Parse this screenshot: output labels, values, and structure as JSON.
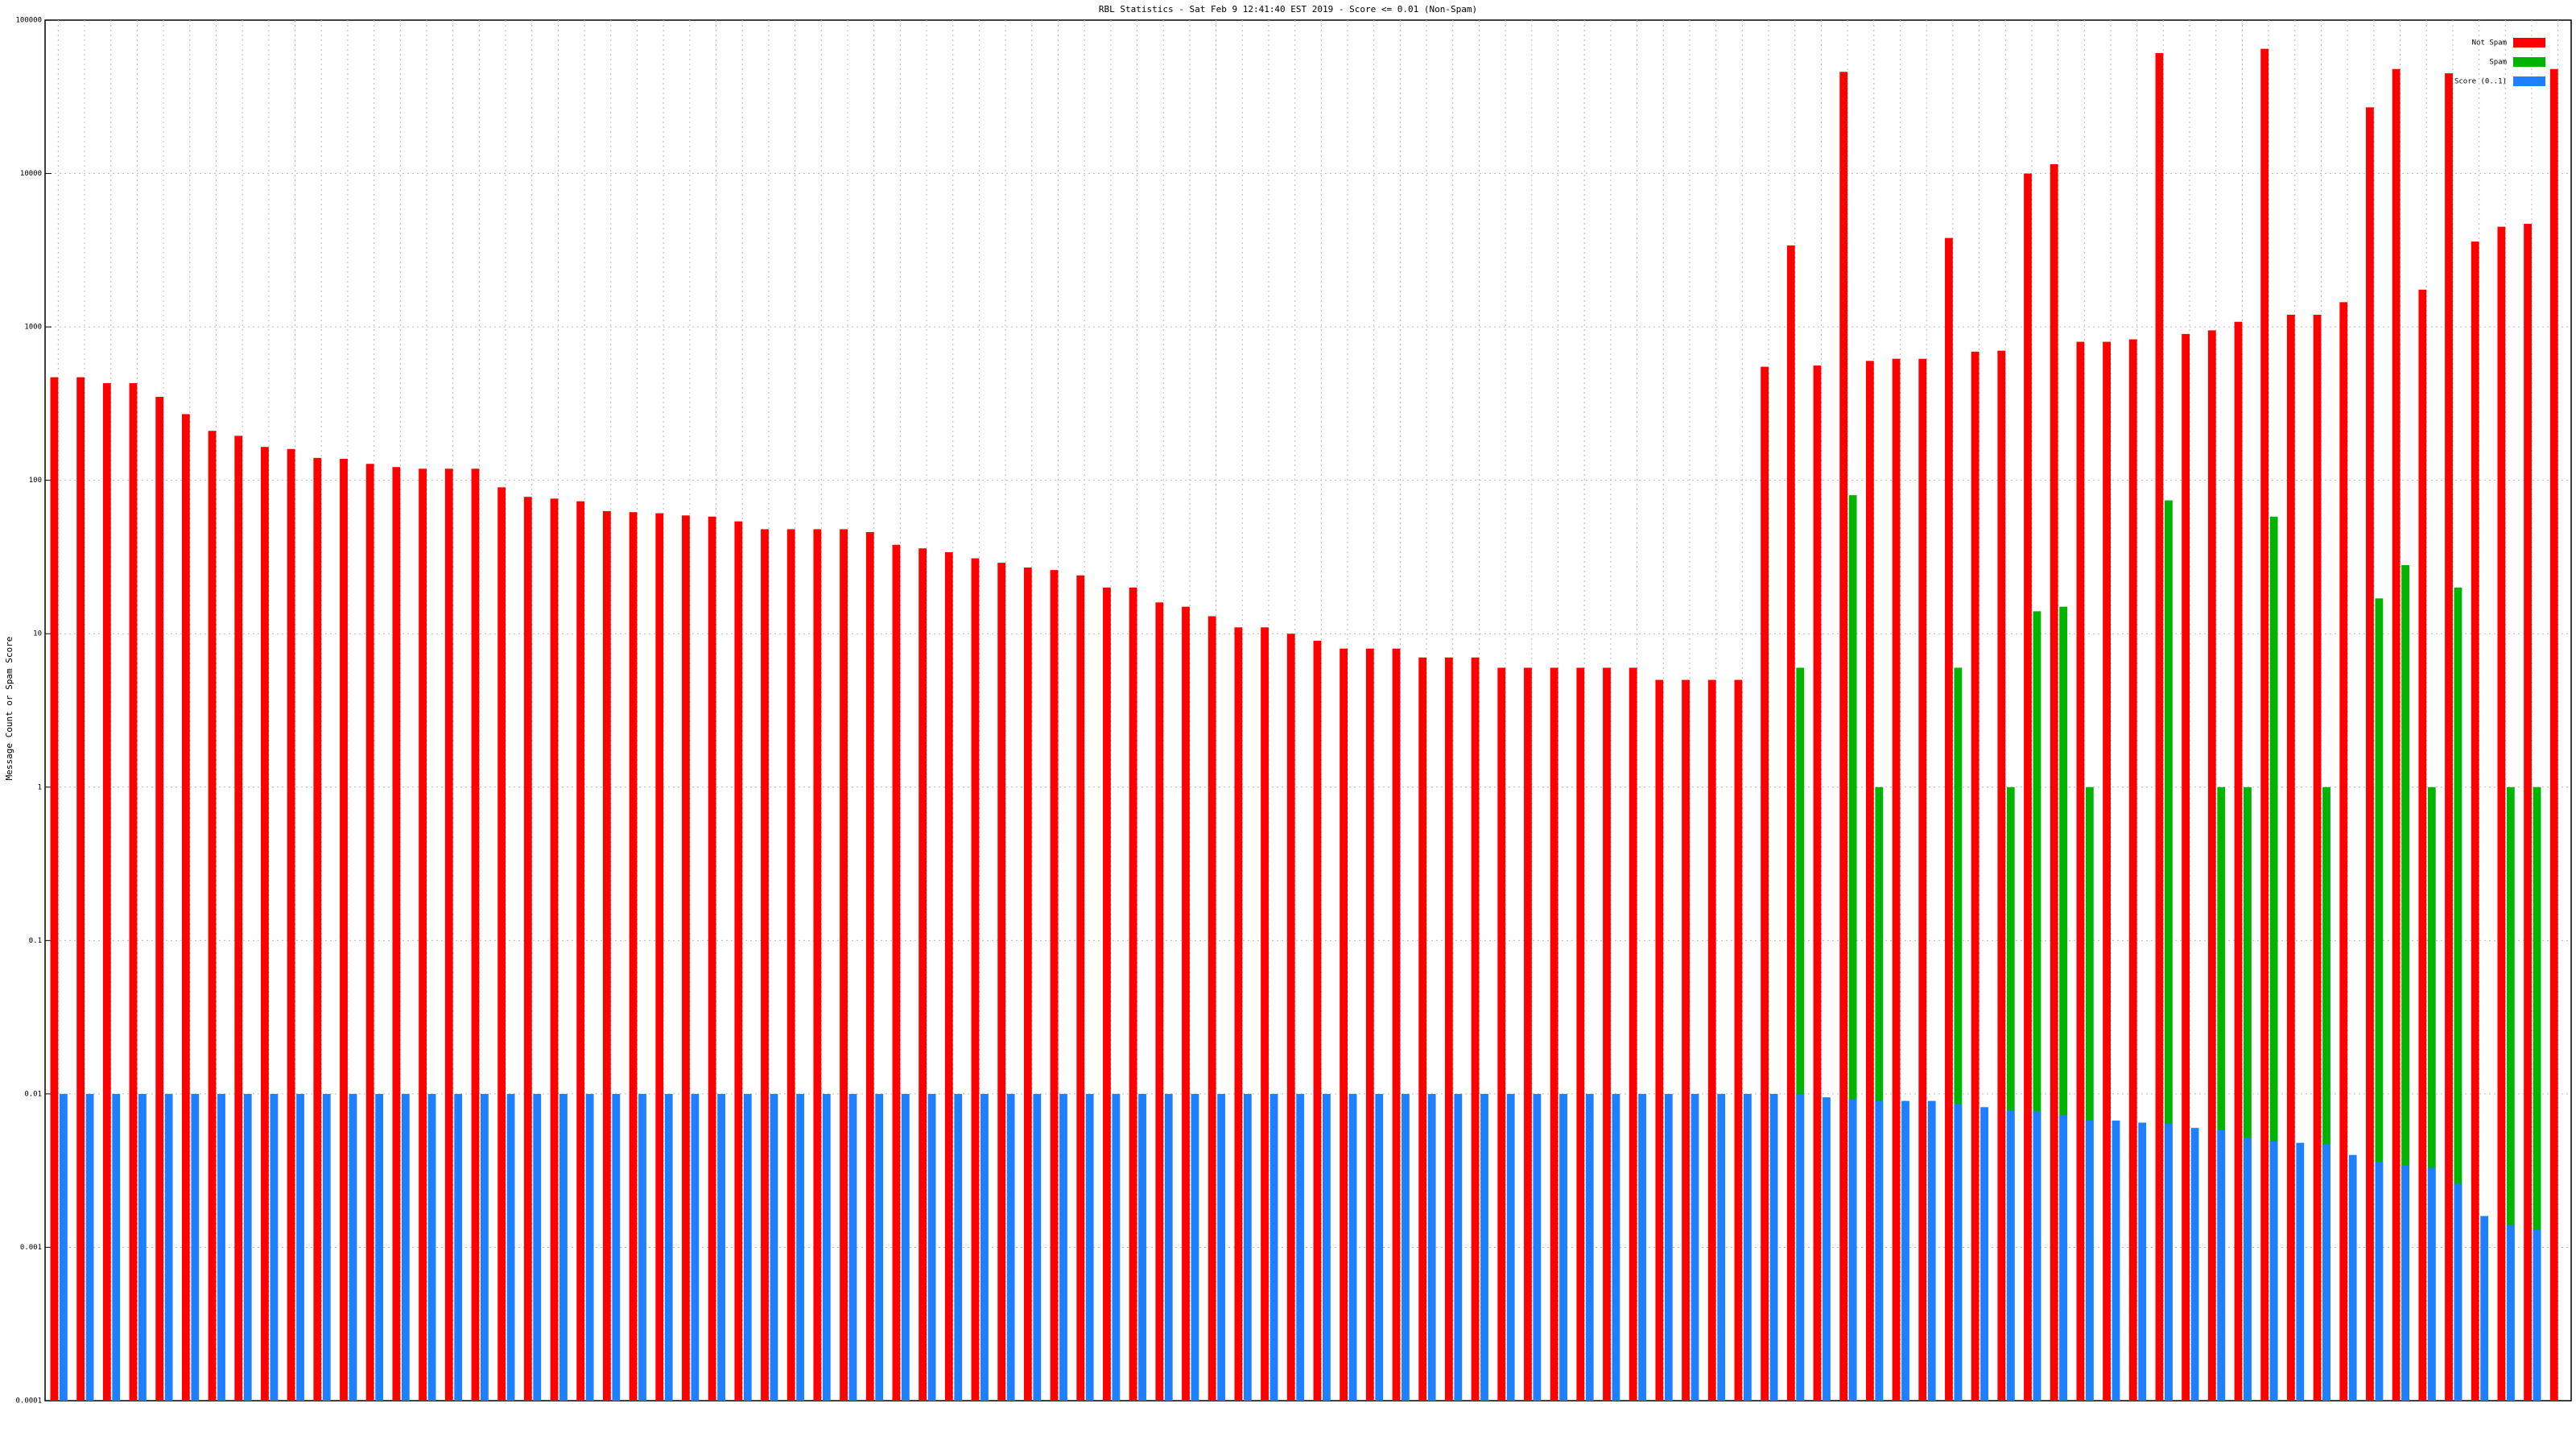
{
  "chart_data": {
    "type": "bar",
    "title": "RBL Statistics - Sat Feb  9 12:41:40 EST 2019 - Score <= 0.01 (Non-Spam)",
    "y_label": "Message Count or Spam Score",
    "log_y": true,
    "grid": true,
    "legend": "top-right",
    "ylim": [
      0.0001,
      100000
    ],
    "yticks": [
      0.0001,
      0.001,
      0.01,
      0.1,
      1,
      10,
      100,
      1000,
      10000,
      100000
    ],
    "categories": [
      null,
      null,
      null,
      null,
      null,
      null,
      null,
      null,
      null,
      null,
      null,
      null,
      null,
      null,
      null,
      null,
      null,
      null,
      null,
      null,
      null,
      null,
      null,
      null,
      null,
      null,
      null,
      null,
      null,
      null,
      null,
      null,
      null,
      null,
      null,
      null,
      null,
      null,
      null,
      null,
      null,
      null,
      null,
      null,
      null,
      null,
      null,
      null,
      null,
      null,
      null,
      null,
      null,
      null,
      null,
      null,
      null,
      null,
      null,
      null,
      null,
      null,
      null,
      null,
      null,
      null,
      null,
      null,
      null,
      null,
      null,
      null,
      null,
      null,
      null,
      null,
      null,
      null,
      null,
      null,
      null,
      null,
      null,
      null,
      null,
      null,
      null,
      null,
      null,
      null,
      null,
      null,
      null,
      null,
      null,
      null
    ],
    "series": [
      {
        "name": "Not Spam",
        "color": "#ff0000",
        "values": [
          470,
          470,
          430,
          430,
          350,
          270,
          210,
          195,
          165,
          160,
          140,
          138,
          128,
          122,
          119,
          119,
          119,
          90,
          78,
          76,
          73,
          63,
          62,
          61,
          59,
          58,
          54,
          48,
          48,
          48,
          48,
          46,
          38,
          36,
          34,
          31,
          29,
          27,
          26,
          24,
          20,
          20,
          16,
          15,
          13,
          11,
          11,
          10,
          9,
          8,
          8,
          8,
          7,
          7,
          7,
          6,
          6,
          6,
          6,
          6,
          6,
          5,
          5,
          5,
          5,
          550,
          3400,
          560,
          46000,
          600,
          620,
          620,
          3800,
          690,
          700,
          10000,
          11500,
          800,
          800,
          830,
          61000,
          900,
          950,
          1080,
          65000,
          1200,
          1200,
          1450,
          27000,
          48000,
          1750,
          45000,
          3600,
          4500,
          4700,
          48000
        ]
      },
      {
        "name": "Spam",
        "color": "#00b400",
        "values": [
          null,
          null,
          null,
          null,
          null,
          null,
          null,
          null,
          null,
          null,
          null,
          null,
          null,
          null,
          null,
          null,
          null,
          null,
          null,
          null,
          null,
          null,
          null,
          null,
          null,
          null,
          null,
          null,
          null,
          null,
          null,
          null,
          null,
          null,
          null,
          null,
          null,
          null,
          null,
          null,
          null,
          null,
          null,
          null,
          null,
          null,
          null,
          null,
          null,
          null,
          null,
          null,
          null,
          null,
          null,
          null,
          null,
          null,
          null,
          null,
          null,
          null,
          null,
          null,
          null,
          null,
          6,
          null,
          80,
          1,
          null,
          null,
          6,
          null,
          1,
          14,
          15,
          1,
          null,
          null,
          74,
          null,
          1,
          1,
          58,
          null,
          1,
          null,
          17,
          28,
          1,
          20,
          null,
          1,
          1,
          null
        ]
      },
      {
        "name": "Score (0..1)",
        "color": "#1e7fff",
        "values": [
          0.01,
          0.01,
          0.01,
          0.01,
          0.01,
          0.01,
          0.01,
          0.01,
          0.01,
          0.01,
          0.01,
          0.01,
          0.01,
          0.01,
          0.01,
          0.01,
          0.01,
          0.01,
          0.01,
          0.01,
          0.01,
          0.01,
          0.01,
          0.01,
          0.01,
          0.01,
          0.01,
          0.01,
          0.01,
          0.01,
          0.01,
          0.01,
          0.01,
          0.01,
          0.01,
          0.01,
          0.01,
          0.01,
          0.01,
          0.01,
          0.01,
          0.01,
          0.01,
          0.01,
          0.01,
          0.01,
          0.01,
          0.01,
          0.01,
          0.01,
          0.01,
          0.01,
          0.01,
          0.01,
          0.01,
          0.01,
          0.01,
          0.01,
          0.01,
          0.01,
          0.01,
          0.01,
          0.01,
          0.01,
          0.01,
          0.01,
          0.01,
          0.0095,
          0.0093,
          0.009,
          0.009,
          0.009,
          0.0086,
          0.0082,
          0.0078,
          0.0077,
          0.0073,
          0.0067,
          0.0067,
          0.0065,
          0.0064,
          0.006,
          0.0058,
          0.0052,
          0.0049,
          0.0048,
          0.0047,
          0.004,
          0.0036,
          0.0034,
          0.0033,
          0.0026,
          0.0016,
          0.0014,
          0.0013,
          null
        ]
      }
    ]
  }
}
